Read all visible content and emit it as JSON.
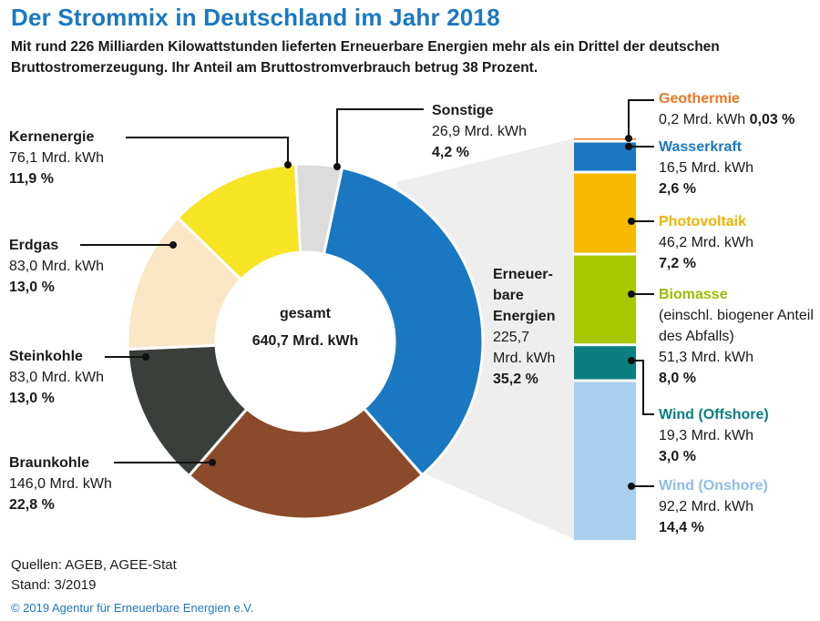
{
  "header": {
    "title": "Der Strommix in Deutschland im Jahr 2018",
    "subtitle": "Mit rund 226 Milliarden Kilowattstunden lieferten Erneuerbare Energien mehr als ein Drittel der deutschen Bruttostromerzeugung. Ihr Anteil am Bruttostromverbrauch betrug 38 Prozent."
  },
  "center": {
    "line1": "gesamt",
    "line2": "640,7 Mrd. kWh"
  },
  "colors": {
    "renewables": "#1a78c2",
    "braunkohle": "#8b4a2a",
    "steinkohle": "#3b3f3b",
    "erdgas": "#fbe7c6",
    "kernenergie": "#f6e425",
    "sonstige": "#dcdcdc",
    "geothermie": "#e87722",
    "wasserkraft": "#1a78c2",
    "photovoltaik": "#f7b900",
    "biomasse": "#a8c800",
    "wind_offshore": "#0a7f80",
    "wind_onshore": "#a8cfee"
  },
  "chart_data": [
    {
      "type": "pie",
      "slices": [
        {
          "name": "Erneuerbare Energien",
          "value": 225.7,
          "percent": 35.2,
          "label_value": "225,7 Mrd. kWh",
          "label_percent": "35,2 %"
        },
        {
          "name": "Braunkohle",
          "value": 146.0,
          "percent": 22.8,
          "label_value": "146,0 Mrd. kWh",
          "label_percent": "22,8 %"
        },
        {
          "name": "Steinkohle",
          "value": 83.0,
          "percent": 13.0,
          "label_value": "83,0 Mrd. kWh",
          "label_percent": "13,0 %"
        },
        {
          "name": "Erdgas",
          "value": 83.0,
          "percent": 13.0,
          "label_value": "83,0 Mrd. kWh",
          "label_percent": "13,0 %"
        },
        {
          "name": "Kernenergie",
          "value": 76.1,
          "percent": 11.9,
          "label_value": "76,1 Mrd. kWh",
          "label_percent": "11,9 %"
        },
        {
          "name": "Sonstige",
          "value": 26.9,
          "percent": 4.2,
          "label_value": "26,9 Mrd. kWh",
          "label_percent": "4,2 %"
        }
      ],
      "total": "640,7 Mrd. kWh"
    },
    {
      "type": "bar",
      "stacked": true,
      "segments": [
        {
          "name": "Geothermie",
          "value": 0.2,
          "percent": 0.03,
          "label_value": "0,2 Mrd. kWh",
          "label_percent": "0,03 %"
        },
        {
          "name": "Wasserkraft",
          "value": 16.5,
          "percent": 2.6,
          "label_value": "16,5 Mrd. kWh",
          "label_percent": "2,6 %"
        },
        {
          "name": "Photovoltaik",
          "value": 46.2,
          "percent": 7.2,
          "label_value": "46,2 Mrd. kWh",
          "label_percent": "7,2 %"
        },
        {
          "name": "Biomasse",
          "value": 51.3,
          "percent": 8.0,
          "label_value": "51,3 Mrd. kWh",
          "label_percent": "8,0 %",
          "note": "(einschl. biogener Anteil des Abfalls)"
        },
        {
          "name": "Wind (Offshore)",
          "value": 19.3,
          "percent": 3.0,
          "label_value": "19,3 Mrd. kWh",
          "label_percent": "3,0 %"
        },
        {
          "name": "Wind (Onshore)",
          "value": 92.2,
          "percent": 14.4,
          "label_value": "92,2 Mrd. kWh",
          "label_percent": "14,4 %"
        }
      ]
    }
  ],
  "renewables_label": {
    "line1": "Erneuer-",
    "line2": "bare",
    "line3": "Energien",
    "value": "225,7",
    "unit": "Mrd. kWh",
    "percent": "35,2 %"
  },
  "footer": {
    "sources": "Quellen: AGEB, AGEE-Stat",
    "stand": "Stand: 3/2019",
    "copyright": "© 2019 Agentur für Erneuerbare Energien e.V."
  }
}
